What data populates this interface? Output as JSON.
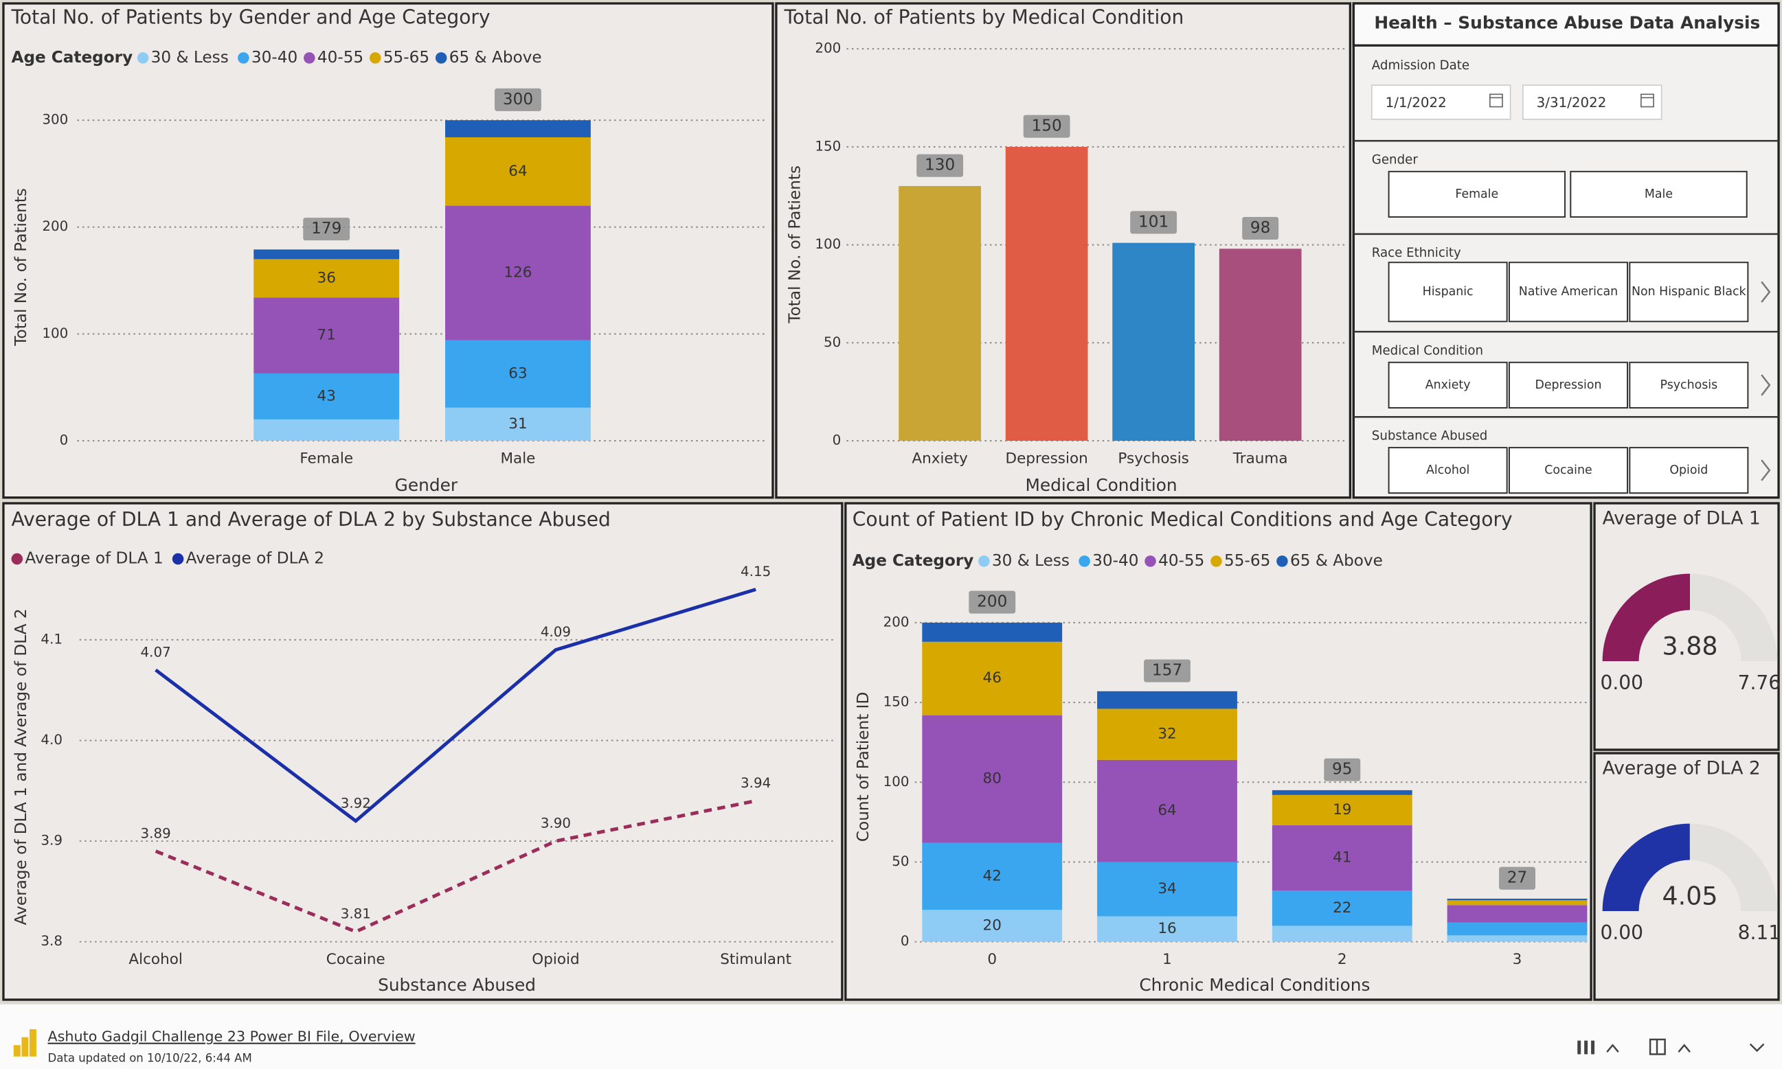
{
  "chart_data": [
    {
      "type": "bar",
      "stacked": true,
      "title": "Total No. of Patients by Gender and Age Category",
      "legend_title": "Age Category",
      "x_label": "Gender",
      "y_label": "Total No. of Patients",
      "categories": [
        "Female",
        "Male"
      ],
      "series": [
        {
          "name": "30 & Less",
          "color": "#8ecbf5",
          "values": [
            20,
            31
          ]
        },
        {
          "name": "30-40",
          "color": "#3aa6ef",
          "values": [
            43,
            63
          ]
        },
        {
          "name": "40-55",
          "color": "#9553b8",
          "values": [
            71,
            126
          ]
        },
        {
          "name": "55-65",
          "color": "#d7a800",
          "values": [
            36,
            64
          ]
        },
        {
          "name": "65 & Above",
          "color": "#1f5fb8",
          "values": [
            9,
            16
          ]
        }
      ],
      "totals": [
        179,
        300
      ],
      "ylim": [
        0,
        320
      ],
      "yticks": [
        0,
        100,
        200,
        300
      ],
      "grid": true
    },
    {
      "type": "bar",
      "title": "Total No. of Patients by Medical Condition",
      "x_label": "Medical Condition",
      "y_label": "Total No. of Patients",
      "categories": [
        "Anxiety",
        "Depression",
        "Psychosis",
        "Trauma"
      ],
      "values": [
        130,
        150,
        101,
        98
      ],
      "colors": [
        "#c9a535",
        "#e05c45",
        "#2f86c6",
        "#a94f7e"
      ],
      "ylim": [
        0,
        200
      ],
      "yticks": [
        0,
        50,
        100,
        150,
        200
      ],
      "grid": true
    },
    {
      "type": "line",
      "title": "Average of DLA 1 and Average of DLA 2 by Substance Abused",
      "x_label": "Substance Abused",
      "y_label": "Average of DLA 1 and Average of DLA 2",
      "categories": [
        "Alcohol",
        "Cocaine",
        "Opioid",
        "Stimulant"
      ],
      "series": [
        {
          "name": "Average of DLA 1",
          "color": "#9b2d5a",
          "dashed": true,
          "values": [
            3.89,
            3.81,
            3.9,
            3.94
          ],
          "value_labels": [
            "3.89",
            "3.81",
            "3.90",
            "3.94"
          ]
        },
        {
          "name": "Average of DLA 2",
          "color": "#1a2fa8",
          "dashed": false,
          "values": [
            4.07,
            3.92,
            4.09,
            4.15
          ],
          "value_labels": [
            "4.07",
            "3.92",
            "4.09",
            "4.15"
          ]
        }
      ],
      "ylim": [
        3.8,
        4.16
      ],
      "yticks": [
        3.8,
        3.9,
        {
          "value": 4,
          "label": "4.0"
        },
        4.1
      ],
      "grid": true
    },
    {
      "type": "bar",
      "stacked": true,
      "title": "Count of Patient ID by Chronic Medical Conditions and Age Category",
      "legend_title": "Age Category",
      "x_label": "Chronic Medical Conditions",
      "y_label": "Count of Patient ID",
      "categories": [
        "0",
        "1",
        "2",
        "3"
      ],
      "series": [
        {
          "name": "30 & Less",
          "color": "#8ecbf5",
          "values": [
            20,
            16,
            10,
            4
          ]
        },
        {
          "name": "30-40",
          "color": "#3aa6ef",
          "values": [
            42,
            34,
            22,
            8
          ]
        },
        {
          "name": "40-55",
          "color": "#9553b8",
          "values": [
            80,
            64,
            41,
            11
          ]
        },
        {
          "name": "55-65",
          "color": "#d7a800",
          "values": [
            46,
            32,
            19,
            3
          ]
        },
        {
          "name": "65 & Above",
          "color": "#1f5fb8",
          "values": [
            12,
            11,
            3,
            1
          ]
        }
      ],
      "totals": [
        200,
        157,
        95,
        27
      ],
      "ylim": [
        0,
        220
      ],
      "yticks": [
        0,
        50,
        100,
        150,
        200
      ],
      "grid": true
    },
    {
      "type": "gauge",
      "title": "Average of DLA 1",
      "value": 3.88,
      "min": {
        "value": 0,
        "label": "0.00"
      },
      "max": 7.76,
      "color": "#8b1e5a"
    },
    {
      "type": "gauge",
      "title": "Average of DLA 2",
      "value": 4.05,
      "min": {
        "value": 0,
        "label": "0.00"
      },
      "max": 8.11,
      "color": "#1f33a6"
    }
  ],
  "panel": {
    "title": "Health – Substance Abuse Data Analysis",
    "slicers": [
      {
        "label": "Admission Date",
        "dates": [
          "1/1/2022",
          "3/31/2022"
        ]
      },
      {
        "label": "Gender",
        "options": [
          "Female",
          "Male"
        ]
      },
      {
        "label": "Race Ethnicity",
        "options": [
          "Hispanic",
          "Native American",
          "Non Hispanic Black"
        ]
      },
      {
        "label": "Medical Condition",
        "options": [
          "Anxiety",
          "Depression",
          "Psychosis"
        ]
      },
      {
        "label": "Substance Abused",
        "options": [
          "Alcohol",
          "Cocaine",
          "Opioid"
        ]
      }
    ]
  },
  "footer": {
    "title": "Ashuto Gadgil Challenge 23 Power BI File, Overview",
    "updated": "Data updated on 10/10/22, 6:44 AM"
  }
}
